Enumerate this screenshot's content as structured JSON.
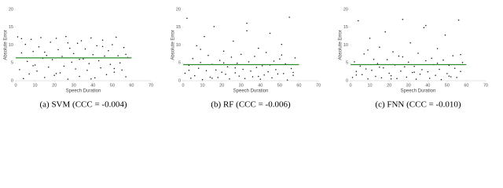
{
  "chart_data": [
    {
      "type": "scatter",
      "caption": "(a) SVM (CCC = -0.004)",
      "xlabel": "Speech Duration",
      "ylabel": "Absolute Error",
      "xlim": [
        0,
        70
      ],
      "ylim": [
        0,
        20
      ],
      "xticks": [
        0,
        10,
        20,
        30,
        40,
        50,
        60,
        70
      ],
      "yticks": [
        0,
        5,
        10,
        15,
        20
      ],
      "color": "#111111",
      "x": [
        1,
        2,
        3,
        4,
        5,
        6,
        7,
        8,
        9,
        10,
        11,
        12,
        13,
        14,
        15,
        16,
        17,
        18,
        19,
        20,
        21,
        22,
        23,
        24,
        25,
        26,
        27,
        28,
        29,
        30,
        31,
        32,
        33,
        34,
        35,
        36,
        37,
        38,
        39,
        40,
        41,
        42,
        43,
        44,
        45,
        46,
        47,
        48,
        49,
        50,
        51,
        52,
        53,
        54,
        55,
        56,
        57,
        58,
        3,
        9,
        15,
        21,
        27,
        33,
        39,
        45,
        51,
        57
      ],
      "y": [
        12.3,
        3.1,
        7.8,
        0.6,
        10.2,
        5.4,
        1.9,
        11.6,
        8.2,
        4.4,
        2.7,
        9.5,
        12.1,
        6.3,
        0.9,
        7.1,
        3.8,
        10.8,
        5.9,
        1.5,
        11.9,
        8.7,
        2.2,
        6.8,
        4.1,
        12.4,
        0.4,
        9.1,
        5.2,
        7.6,
        3.3,
        10.5,
        1.2,
        11.2,
        6.1,
        8.9,
        2.9,
        4.8,
        12.0,
        7.3,
        0.8,
        9.8,
        5.6,
        3.6,
        11.4,
        6.9,
        1.7,
        8.4,
        4.6,
        10.1,
        2.4,
        12.2,
        7.0,
        5.0,
        3.0,
        9.3,
        1.1,
        6.5,
        11.8,
        4.2,
        8.0,
        2.0,
        10.6,
        6.0,
        0.5,
        9.6,
        3.4,
        7.4
      ],
      "trend": {
        "x": [
          0,
          60
        ],
        "y": [
          6.4,
          6.4
        ],
        "color": "#2e8b2e"
      }
    },
    {
      "type": "scatter",
      "caption": "(b) RF (CCC = -0.006)",
      "xlabel": "Speech Duration",
      "ylabel": "Absolute Error",
      "xlim": [
        0,
        70
      ],
      "ylim": [
        0,
        20
      ],
      "xticks": [
        0,
        10,
        20,
        30,
        40,
        50,
        60,
        70
      ],
      "yticks": [
        0,
        5,
        10,
        15,
        20
      ],
      "color": "#111111",
      "x": [
        1,
        2,
        3,
        4,
        5,
        6,
        7,
        8,
        9,
        10,
        11,
        12,
        13,
        14,
        15,
        16,
        17,
        18,
        19,
        20,
        21,
        22,
        23,
        24,
        25,
        26,
        27,
        28,
        29,
        30,
        31,
        32,
        33,
        34,
        35,
        36,
        37,
        38,
        39,
        40,
        41,
        42,
        43,
        44,
        45,
        46,
        47,
        48,
        49,
        50,
        51,
        52,
        53,
        54,
        55,
        56,
        57,
        58,
        3,
        9,
        15,
        21,
        27,
        33,
        39,
        45,
        51,
        57
      ],
      "y": [
        2.1,
        17.5,
        4.3,
        0.7,
        6.2,
        1.4,
        9.8,
        3.5,
        5.1,
        0.3,
        12.4,
        2.8,
        7.1,
        1.0,
        4.6,
        15.2,
        3.0,
        0.9,
        5.7,
        2.4,
        8.3,
        1.8,
        3.9,
        0.5,
        6.6,
        11.1,
        2.2,
        4.9,
        1.3,
        7.4,
        3.2,
        0.6,
        14.0,
        5.3,
        2.7,
        1.1,
        6.8,
        3.7,
        9.1,
        0.4,
        4.2,
        1.6,
        7.9,
        2.5,
        13.3,
        0.8,
        5.5,
        3.1,
        1.9,
        6.1,
        10.2,
        2.0,
        4.7,
        0.2,
        17.8,
        3.4,
        1.5,
        6.4,
        2.9,
        8.8,
        0.7,
        5.0,
        3.6,
        16.1,
        1.2,
        4.4,
        7.2,
        2.3
      ],
      "trend": {
        "x": [
          0,
          60
        ],
        "y": [
          4.5,
          4.5
        ],
        "color": "#2e8b2e"
      }
    },
    {
      "type": "scatter",
      "caption": "(c) FNN (CCC = -0.010)",
      "xlabel": "Speech Duration",
      "ylabel": "Absolute Error",
      "xlim": [
        0,
        70
      ],
      "ylim": [
        0,
        20
      ],
      "xticks": [
        0,
        10,
        20,
        30,
        40,
        50,
        60,
        70
      ],
      "yticks": [
        0,
        5,
        10,
        15,
        20
      ],
      "color": "#111111",
      "x": [
        1,
        2,
        3,
        4,
        5,
        6,
        7,
        8,
        9,
        10,
        11,
        12,
        13,
        14,
        15,
        16,
        17,
        18,
        19,
        20,
        21,
        22,
        23,
        24,
        25,
        26,
        27,
        28,
        29,
        30,
        31,
        32,
        33,
        34,
        35,
        36,
        37,
        38,
        39,
        40,
        41,
        42,
        43,
        44,
        45,
        46,
        47,
        48,
        49,
        50,
        51,
        52,
        53,
        54,
        55,
        56,
        57,
        58,
        3,
        9,
        15,
        21,
        27,
        33,
        39,
        45,
        51,
        57
      ],
      "y": [
        0.9,
        5.3,
        2.6,
        16.8,
        4.1,
        1.7,
        7.5,
        3.3,
        0.5,
        11.9,
        2.9,
        6.0,
        1.2,
        4.8,
        9.4,
        0.8,
        3.6,
        13.7,
        5.9,
        2.1,
        1.4,
        8.1,
        4.4,
        0.6,
        6.9,
        2.7,
        17.2,
        3.9,
        1.0,
        5.2,
        10.6,
        2.3,
        4.0,
        0.4,
        7.7,
        1.8,
        3.1,
        14.9,
        5.6,
        2.5,
        0.7,
        6.3,
        4.5,
        1.5,
        9.0,
        3.2,
        0.3,
        5.8,
        12.8,
        2.0,
        4.3,
        1.1,
        7.0,
        3.5,
        0.9,
        17.0,
        2.6,
        5.1,
        1.6,
        8.6,
        3.8,
        0.5,
        6.7,
        2.4,
        15.5,
        4.9,
        1.3,
        7.3
      ],
      "trend": {
        "x": [
          0,
          60
        ],
        "y": [
          4.5,
          4.5
        ],
        "color": "#2e8b2e"
      }
    }
  ]
}
